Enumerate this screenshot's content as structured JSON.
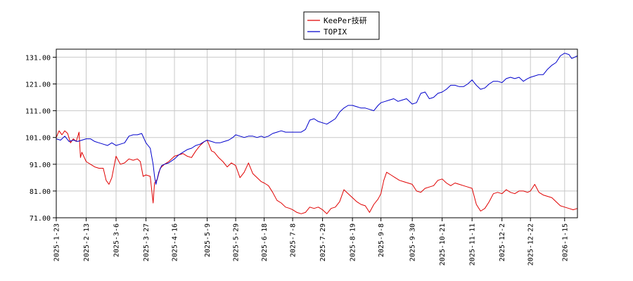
{
  "chart_data": {
    "type": "line",
    "title": "",
    "xlabel": "",
    "ylabel": "",
    "grid": true,
    "legend_position": "top-center",
    "ylim": [
      71.0,
      134.0
    ],
    "y_ticks": [
      "71.00",
      "81.00",
      "91.00",
      "101.00",
      "111.00",
      "121.00",
      "131.00"
    ],
    "x_ticks": [
      "2025-1-23",
      "2025-2-13",
      "2025-3-6",
      "2025-3-27",
      "2025-4-16",
      "2025-5-9",
      "2025-5-29",
      "2025-6-18",
      "2025-7-8",
      "2025-7-29",
      "2025-8-19",
      "2025-9-8",
      "2025-9-30",
      "2025-10-21",
      "2025-11-11",
      "2025-12-2",
      "2025-12-22",
      "2026-1-15"
    ],
    "series": [
      {
        "name": "KeePer技研",
        "color": "#e00000",
        "points": [
          [
            "2025-1-23",
            101.0
          ],
          [
            "2025-1-25",
            103.5
          ],
          [
            "2025-1-27",
            102.0
          ],
          [
            "2025-1-29",
            103.5
          ],
          [
            "2025-1-31",
            102.5
          ],
          [
            "2025-2-2",
            99.0
          ],
          [
            "2025-2-4",
            100.5
          ],
          [
            "2025-2-6",
            99.5
          ],
          [
            "2025-2-8",
            103.0
          ],
          [
            "2025-2-9",
            93.5
          ],
          [
            "2025-2-10",
            95.5
          ],
          [
            "2025-2-13",
            92.0
          ],
          [
            "2025-2-16",
            91.0
          ],
          [
            "2025-2-19",
            90.0
          ],
          [
            "2025-2-22",
            89.5
          ],
          [
            "2025-2-25",
            89.5
          ],
          [
            "2025-2-27",
            85.0
          ],
          [
            "2025-3-1",
            83.5
          ],
          [
            "2025-3-3",
            86.0
          ],
          [
            "2025-3-6",
            94.0
          ],
          [
            "2025-3-9",
            91.0
          ],
          [
            "2025-3-12",
            91.5
          ],
          [
            "2025-3-15",
            93.0
          ],
          [
            "2025-3-18",
            92.5
          ],
          [
            "2025-3-21",
            93.0
          ],
          [
            "2025-3-23",
            92.0
          ],
          [
            "2025-3-25",
            86.5
          ],
          [
            "2025-3-27",
            87.0
          ],
          [
            "2025-3-30",
            86.5
          ],
          [
            "2025-4-1",
            76.5
          ],
          [
            "2025-4-2",
            84.0
          ],
          [
            "2025-4-4",
            85.5
          ],
          [
            "2025-4-6",
            89.5
          ],
          [
            "2025-4-9",
            91.0
          ],
          [
            "2025-4-12",
            92.0
          ],
          [
            "2025-4-16",
            94.0
          ],
          [
            "2025-4-19",
            94.5
          ],
          [
            "2025-4-22",
            95.0
          ],
          [
            "2025-4-25",
            94.0
          ],
          [
            "2025-4-28",
            93.5
          ],
          [
            "2025-5-1",
            96.0
          ],
          [
            "2025-5-4",
            98.0
          ],
          [
            "2025-5-7",
            99.5
          ],
          [
            "2025-5-9",
            100.0
          ],
          [
            "2025-5-12",
            96.0
          ],
          [
            "2025-5-14",
            95.5
          ],
          [
            "2025-5-17",
            93.5
          ],
          [
            "2025-5-20",
            92.0
          ],
          [
            "2025-5-23",
            90.0
          ],
          [
            "2025-5-26",
            91.5
          ],
          [
            "2025-5-29",
            90.5
          ],
          [
            "2025-6-1",
            86.0
          ],
          [
            "2025-6-4",
            88.0
          ],
          [
            "2025-6-7",
            91.5
          ],
          [
            "2025-6-10",
            87.5
          ],
          [
            "2025-6-13",
            86.0
          ],
          [
            "2025-6-16",
            84.5
          ],
          [
            "2025-6-18",
            84.0
          ],
          [
            "2025-6-21",
            83.0
          ],
          [
            "2025-6-24",
            80.5
          ],
          [
            "2025-6-27",
            77.5
          ],
          [
            "2025-6-30",
            76.5
          ],
          [
            "2025-7-3",
            75.0
          ],
          [
            "2025-7-6",
            74.5
          ],
          [
            "2025-7-8",
            74.0
          ],
          [
            "2025-7-11",
            73.0
          ],
          [
            "2025-7-14",
            72.5
          ],
          [
            "2025-7-17",
            73.0
          ],
          [
            "2025-7-20",
            75.0
          ],
          [
            "2025-7-23",
            74.5
          ],
          [
            "2025-7-26",
            75.0
          ],
          [
            "2025-7-29",
            74.0
          ],
          [
            "2025-8-1",
            72.5
          ],
          [
            "2025-8-4",
            74.5
          ],
          [
            "2025-8-7",
            75.0
          ],
          [
            "2025-8-10",
            77.0
          ],
          [
            "2025-8-13",
            81.5
          ],
          [
            "2025-8-16",
            80.0
          ],
          [
            "2025-8-19",
            78.5
          ],
          [
            "2025-8-22",
            77.0
          ],
          [
            "2025-8-25",
            76.0
          ],
          [
            "2025-8-28",
            75.5
          ],
          [
            "2025-8-31",
            73.0
          ],
          [
            "2025-9-3",
            76.0
          ],
          [
            "2025-9-6",
            78.0
          ],
          [
            "2025-9-8",
            80.0
          ],
          [
            "2025-9-10",
            85.0
          ],
          [
            "2025-9-12",
            88.0
          ],
          [
            "2025-9-15",
            87.0
          ],
          [
            "2025-9-18",
            86.0
          ],
          [
            "2025-9-21",
            85.0
          ],
          [
            "2025-9-24",
            84.5
          ],
          [
            "2025-9-27",
            84.0
          ],
          [
            "2025-9-30",
            83.5
          ],
          [
            "2025-10-3",
            81.0
          ],
          [
            "2025-10-6",
            80.5
          ],
          [
            "2025-10-9",
            82.0
          ],
          [
            "2025-10-12",
            82.5
          ],
          [
            "2025-10-15",
            83.0
          ],
          [
            "2025-10-18",
            85.0
          ],
          [
            "2025-10-21",
            85.5
          ],
          [
            "2025-10-24",
            84.0
          ],
          [
            "2025-10-27",
            83.0
          ],
          [
            "2025-10-30",
            84.0
          ],
          [
            "2025-11-2",
            83.5
          ],
          [
            "2025-11-5",
            83.0
          ],
          [
            "2025-11-8",
            82.5
          ],
          [
            "2025-11-11",
            82.0
          ],
          [
            "2025-11-14",
            76.0
          ],
          [
            "2025-11-17",
            73.5
          ],
          [
            "2025-11-20",
            74.5
          ],
          [
            "2025-11-23",
            77.0
          ],
          [
            "2025-11-26",
            80.0
          ],
          [
            "2025-11-29",
            80.5
          ],
          [
            "2025-12-2",
            80.0
          ],
          [
            "2025-12-5",
            81.5
          ],
          [
            "2025-12-8",
            80.5
          ],
          [
            "2025-12-11",
            80.0
          ],
          [
            "2025-12-14",
            81.0
          ],
          [
            "2025-12-17",
            81.0
          ],
          [
            "2025-12-20",
            80.5
          ],
          [
            "2025-12-22",
            81.0
          ],
          [
            "2025-12-25",
            83.5
          ],
          [
            "2025-12-28",
            80.5
          ],
          [
            "2025-12-31",
            79.5
          ],
          [
            "2026-1-3",
            79.0
          ],
          [
            "2026-1-6",
            78.5
          ],
          [
            "2026-1-9",
            77.0
          ],
          [
            "2026-1-12",
            75.5
          ],
          [
            "2026-1-15",
            75.0
          ],
          [
            "2026-1-18",
            74.5
          ],
          [
            "2026-1-21",
            74.0
          ],
          [
            "2026-1-24",
            74.5
          ]
        ]
      },
      {
        "name": "TOPIX",
        "color": "#0000cc",
        "points": [
          [
            "2025-1-23",
            100.5
          ],
          [
            "2025-1-26",
            100.0
          ],
          [
            "2025-1-29",
            101.5
          ],
          [
            "2025-2-1",
            99.5
          ],
          [
            "2025-2-4",
            100.0
          ],
          [
            "2025-2-7",
            99.5
          ],
          [
            "2025-2-10",
            100.0
          ],
          [
            "2025-2-13",
            100.5
          ],
          [
            "2025-2-16",
            100.5
          ],
          [
            "2025-2-19",
            99.5
          ],
          [
            "2025-2-22",
            99.0
          ],
          [
            "2025-2-25",
            98.5
          ],
          [
            "2025-2-28",
            98.0
          ],
          [
            "2025-3-3",
            99.0
          ],
          [
            "2025-3-6",
            98.0
          ],
          [
            "2025-3-9",
            98.5
          ],
          [
            "2025-3-12",
            99.0
          ],
          [
            "2025-3-15",
            101.5
          ],
          [
            "2025-3-18",
            102.0
          ],
          [
            "2025-3-21",
            102.0
          ],
          [
            "2025-3-24",
            102.5
          ],
          [
            "2025-3-27",
            99.0
          ],
          [
            "2025-3-30",
            97.0
          ],
          [
            "2025-4-1",
            91.0
          ],
          [
            "2025-4-2",
            86.5
          ],
          [
            "2025-4-3",
            83.5
          ],
          [
            "2025-4-5",
            88.0
          ],
          [
            "2025-4-7",
            90.5
          ],
          [
            "2025-4-9",
            91.0
          ],
          [
            "2025-4-12",
            91.5
          ],
          [
            "2025-4-16",
            93.0
          ],
          [
            "2025-4-19",
            94.5
          ],
          [
            "2025-4-22",
            95.5
          ],
          [
            "2025-4-25",
            96.5
          ],
          [
            "2025-4-28",
            97.0
          ],
          [
            "2025-5-1",
            98.0
          ],
          [
            "2025-5-4",
            98.5
          ],
          [
            "2025-5-7",
            99.5
          ],
          [
            "2025-5-9",
            100.0
          ],
          [
            "2025-5-12",
            99.5
          ],
          [
            "2025-5-15",
            99.0
          ],
          [
            "2025-5-18",
            99.0
          ],
          [
            "2025-5-21",
            99.5
          ],
          [
            "2025-5-24",
            100.0
          ],
          [
            "2025-5-27",
            101.0
          ],
          [
            "2025-5-29",
            102.0
          ],
          [
            "2025-6-1",
            101.5
          ],
          [
            "2025-6-4",
            101.0
          ],
          [
            "2025-6-7",
            101.5
          ],
          [
            "2025-6-10",
            101.5
          ],
          [
            "2025-6-13",
            101.0
          ],
          [
            "2025-6-16",
            101.5
          ],
          [
            "2025-6-18",
            101.0
          ],
          [
            "2025-6-21",
            101.5
          ],
          [
            "2025-6-24",
            102.5
          ],
          [
            "2025-6-27",
            103.0
          ],
          [
            "2025-6-30",
            103.5
          ],
          [
            "2025-7-3",
            103.0
          ],
          [
            "2025-7-6",
            103.0
          ],
          [
            "2025-7-8",
            103.0
          ],
          [
            "2025-7-11",
            103.0
          ],
          [
            "2025-7-14",
            103.0
          ],
          [
            "2025-7-17",
            104.0
          ],
          [
            "2025-7-20",
            107.5
          ],
          [
            "2025-7-23",
            108.0
          ],
          [
            "2025-7-26",
            107.0
          ],
          [
            "2025-7-29",
            106.5
          ],
          [
            "2025-8-1",
            106.0
          ],
          [
            "2025-8-4",
            107.0
          ],
          [
            "2025-8-7",
            108.0
          ],
          [
            "2025-8-10",
            110.5
          ],
          [
            "2025-8-13",
            112.0
          ],
          [
            "2025-8-16",
            113.0
          ],
          [
            "2025-8-19",
            113.0
          ],
          [
            "2025-8-22",
            112.5
          ],
          [
            "2025-8-25",
            112.0
          ],
          [
            "2025-8-28",
            112.0
          ],
          [
            "2025-8-31",
            111.5
          ],
          [
            "2025-9-3",
            111.0
          ],
          [
            "2025-9-6",
            113.0
          ],
          [
            "2025-9-8",
            114.0
          ],
          [
            "2025-9-11",
            114.5
          ],
          [
            "2025-9-14",
            115.0
          ],
          [
            "2025-9-17",
            115.5
          ],
          [
            "2025-9-20",
            114.5
          ],
          [
            "2025-9-23",
            115.0
          ],
          [
            "2025-9-26",
            115.5
          ],
          [
            "2025-9-30",
            113.5
          ],
          [
            "2025-10-3",
            114.0
          ],
          [
            "2025-10-6",
            117.5
          ],
          [
            "2025-10-9",
            118.0
          ],
          [
            "2025-10-12",
            115.5
          ],
          [
            "2025-10-15",
            116.0
          ],
          [
            "2025-10-18",
            117.5
          ],
          [
            "2025-10-21",
            118.0
          ],
          [
            "2025-10-24",
            119.0
          ],
          [
            "2025-10-27",
            120.5
          ],
          [
            "2025-10-30",
            120.5
          ],
          [
            "2025-11-2",
            120.0
          ],
          [
            "2025-11-5",
            120.0
          ],
          [
            "2025-11-8",
            121.0
          ],
          [
            "2025-11-11",
            122.5
          ],
          [
            "2025-11-14",
            120.5
          ],
          [
            "2025-11-17",
            119.0
          ],
          [
            "2025-11-20",
            119.5
          ],
          [
            "2025-11-23",
            121.0
          ],
          [
            "2025-11-26",
            122.0
          ],
          [
            "2025-11-29",
            122.0
          ],
          [
            "2025-12-2",
            121.5
          ],
          [
            "2025-12-5",
            123.0
          ],
          [
            "2025-12-8",
            123.5
          ],
          [
            "2025-12-11",
            123.0
          ],
          [
            "2025-12-14",
            123.5
          ],
          [
            "2025-12-17",
            122.0
          ],
          [
            "2025-12-20",
            123.0
          ],
          [
            "2025-12-22",
            123.5
          ],
          [
            "2025-12-25",
            124.0
          ],
          [
            "2025-12-28",
            124.5
          ],
          [
            "2025-12-31",
            124.5
          ],
          [
            "2026-1-3",
            126.5
          ],
          [
            "2026-1-6",
            128.0
          ],
          [
            "2026-1-9",
            129.0
          ],
          [
            "2026-1-12",
            131.5
          ],
          [
            "2026-1-15",
            132.5
          ],
          [
            "2026-1-18",
            132.0
          ],
          [
            "2026-1-20",
            130.5
          ],
          [
            "2026-1-22",
            131.0
          ],
          [
            "2026-1-24",
            131.5
          ]
        ]
      }
    ]
  }
}
